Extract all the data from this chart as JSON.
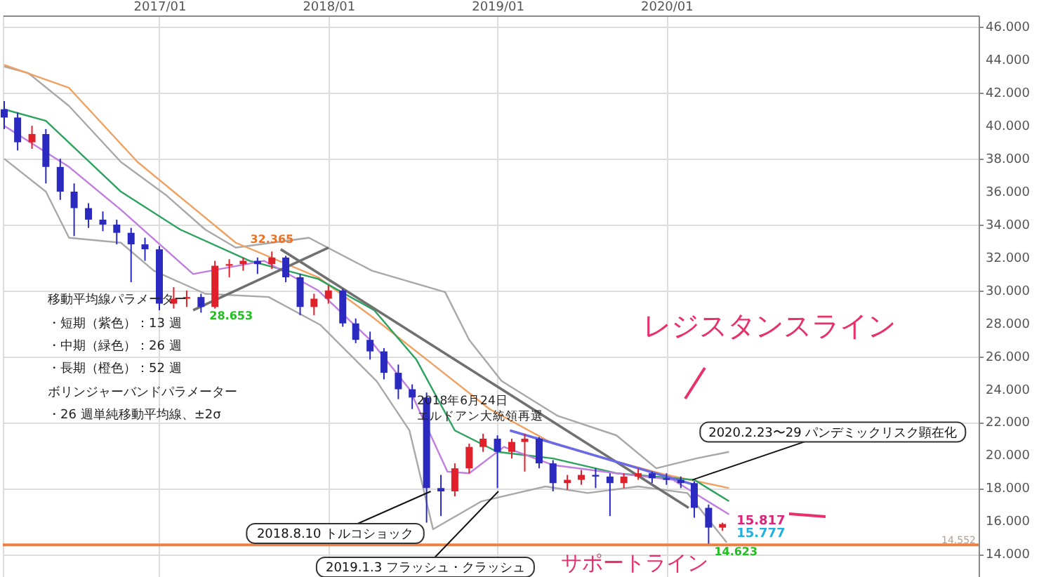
{
  "chart_data": {
    "type": "candlestick",
    "x": [
      "2016-02-01",
      "2016-03-01",
      "2016-04-01",
      "2016-05-01",
      "2016-06-01",
      "2016-07-01",
      "2016-08-01",
      "2016-09-01",
      "2016-10-01",
      "2016-11-01",
      "2016-12-01",
      "2017-01-01",
      "2017-02-01",
      "2017-03-01",
      "2017-04-01",
      "2017-05-01",
      "2017-06-01",
      "2017-07-01",
      "2017-08-01",
      "2017-09-01",
      "2017-10-01",
      "2017-11-01",
      "2017-12-01",
      "2018-01-01",
      "2018-02-01",
      "2018-03-01",
      "2018-04-01",
      "2018-05-01",
      "2018-06-01",
      "2018-07-01",
      "2018-08-01",
      "2018-09-01",
      "2018-10-01",
      "2018-11-01",
      "2018-12-01",
      "2019-01-01",
      "2019-02-01",
      "2019-03-01",
      "2019-04-01",
      "2019-05-01",
      "2019-06-01",
      "2019-07-01",
      "2019-08-01",
      "2019-09-01",
      "2019-10-01",
      "2019-11-01",
      "2019-12-01",
      "2020-01-01",
      "2020-02-01",
      "2020-03-01",
      "2020-04-01",
      "2020-05-01"
    ],
    "ohlc": [
      [
        41.0,
        41.5,
        39.8,
        40.5
      ],
      [
        40.5,
        40.8,
        38.5,
        39.0
      ],
      [
        39.0,
        40.0,
        38.6,
        39.5
      ],
      [
        39.5,
        39.8,
        36.5,
        37.5
      ],
      [
        37.5,
        38.0,
        35.5,
        36.0
      ],
      [
        36.0,
        36.5,
        33.3,
        35.0
      ],
      [
        35.0,
        35.3,
        33.8,
        34.3
      ],
      [
        34.3,
        34.8,
        33.6,
        34.0
      ],
      [
        34.0,
        34.3,
        32.8,
        33.5
      ],
      [
        33.5,
        33.8,
        30.5,
        32.8
      ],
      [
        32.8,
        33.2,
        31.8,
        32.5
      ],
      [
        32.5,
        32.7,
        28.8,
        29.2
      ],
      [
        29.2,
        30.2,
        28.9,
        29.5
      ],
      [
        29.5,
        30.0,
        29.0,
        29.6
      ],
      [
        29.6,
        29.8,
        28.653,
        29.0
      ],
      [
        29.0,
        31.8,
        28.9,
        31.5
      ],
      [
        31.5,
        31.9,
        30.8,
        31.6
      ],
      [
        31.6,
        32.0,
        31.2,
        31.8
      ],
      [
        31.8,
        32.0,
        31.0,
        31.6
      ],
      [
        31.6,
        32.365,
        31.3,
        32.0
      ],
      [
        32.0,
        32.1,
        30.5,
        30.8
      ],
      [
        30.8,
        31.0,
        28.5,
        29.0
      ],
      [
        29.0,
        29.8,
        28.5,
        29.5
      ],
      [
        29.5,
        30.3,
        29.2,
        30.0
      ],
      [
        30.0,
        30.1,
        27.8,
        28.0
      ],
      [
        28.0,
        28.3,
        26.8,
        27.0
      ],
      [
        27.0,
        27.5,
        25.8,
        26.3
      ],
      [
        26.3,
        26.5,
        24.6,
        25.0
      ],
      [
        25.0,
        25.5,
        23.4,
        24.0
      ],
      [
        24.0,
        24.3,
        22.8,
        23.5
      ],
      [
        23.5,
        23.8,
        15.9,
        18.0
      ],
      [
        18.0,
        18.8,
        16.3,
        17.8
      ],
      [
        17.8,
        19.5,
        17.5,
        19.2
      ],
      [
        19.2,
        20.7,
        18.9,
        20.5
      ],
      [
        20.5,
        21.3,
        20.2,
        21.0
      ],
      [
        21.0,
        21.2,
        18.0,
        20.2
      ],
      [
        20.2,
        21.0,
        19.8,
        20.8
      ],
      [
        20.8,
        21.3,
        19.0,
        21.0
      ],
      [
        21.0,
        21.1,
        19.2,
        19.5
      ],
      [
        19.5,
        19.7,
        17.8,
        18.3
      ],
      [
        18.3,
        18.8,
        17.9,
        18.5
      ],
      [
        18.5,
        19.1,
        18.2,
        18.8
      ],
      [
        18.8,
        19.2,
        18.0,
        18.7
      ],
      [
        18.7,
        18.9,
        16.3,
        18.3
      ],
      [
        18.3,
        18.9,
        18.0,
        18.7
      ],
      [
        18.7,
        19.2,
        18.5,
        18.9
      ],
      [
        18.9,
        19.0,
        18.3,
        18.6
      ],
      [
        18.6,
        18.9,
        18.2,
        18.5
      ],
      [
        18.5,
        18.7,
        18.0,
        18.3
      ],
      [
        18.3,
        18.4,
        16.2,
        16.8
      ],
      [
        16.8,
        17.0,
        14.623,
        15.6
      ],
      [
        15.6,
        15.9,
        15.4,
        15.817
      ]
    ],
    "colors": [
      "#2a2ac0",
      "#2a2ac0",
      "#e0202a",
      "#2a2ac0",
      "#2a2ac0",
      "#2a2ac0",
      "#2a2ac0",
      "#2a2ac0",
      "#2a2ac0",
      "#2a2ac0",
      "#2a2ac0",
      "#2a2ac0",
      "#e0202a",
      "#e0202a",
      "#2a2ac0",
      "#e0202a",
      "#e0202a",
      "#e0202a",
      "#2a2ac0",
      "#e0202a",
      "#2a2ac0",
      "#2a2ac0",
      "#e0202a",
      "#e0202a",
      "#2a2ac0",
      "#2a2ac0",
      "#2a2ac0",
      "#2a2ac0",
      "#2a2ac0",
      "#2a2ac0",
      "#2a2ac0",
      "#2a2ac0",
      "#e0202a",
      "#e0202a",
      "#e0202a",
      "#2a2ac0",
      "#e0202a",
      "#e0202a",
      "#2a2ac0",
      "#2a2ac0",
      "#e0202a",
      "#e0202a",
      "#2a2ac0",
      "#2a2ac0",
      "#e0202a",
      "#e0202a",
      "#2a2ac0",
      "#2a2ac0",
      "#2a2ac0",
      "#2a2ac0",
      "#2a2ac0",
      "#e0202a"
    ],
    "series": [
      {
        "type": "line",
        "color": "#a8a8a8",
        "x": [
          "2016-02-01",
          "2016-03-24",
          "2016-06-20",
          "2016-10-10",
          "2017-01-15",
          "2017-04-10",
          "2017-06-15",
          "2017-11-20",
          "2018-04-05",
          "2018-09-10",
          "2018-11-01",
          "2019-01-10",
          "2019-05-10",
          "2019-09-15",
          "2019-12-10",
          "2020-03-05",
          "2020-05-15"
        ],
        "values": [
          43.6,
          43.2,
          41.2,
          37.8,
          35.8,
          33.7,
          32.6,
          33.2,
          31.2,
          29.9,
          27.0,
          24.5,
          22.4,
          21.2,
          19.2,
          19.8,
          20.2
        ]
      },
      {
        "type": "line",
        "color": "#a8a8a8",
        "x": [
          "2016-02-01",
          "2016-05-01",
          "2016-06-20",
          "2016-10-10",
          "2016-12-20",
          "2017-04-10",
          "2017-08-25",
          "2017-12-15",
          "2018-04-15",
          "2018-06-25",
          "2018-08-15",
          "2018-11-28",
          "2019-04-15",
          "2019-07-15",
          "2019-11-01",
          "2020-02-15",
          "2020-05-10"
        ],
        "values": [
          38.0,
          36.0,
          33.2,
          32.9,
          31.2,
          29.8,
          29.6,
          27.9,
          24.5,
          21.5,
          15.5,
          17.2,
          18.1,
          17.7,
          18.1,
          17.7,
          14.7
        ]
      },
      {
        "type": "line",
        "color": "#f0a060",
        "x": [
          "2016-02-01",
          "2016-06-20",
          "2016-11-15",
          "2017-06-15",
          "2017-12-10",
          "2018-04-01",
          "2018-08-15",
          "2018-12-15",
          "2019-05-01",
          "2019-09-15",
          "2020-01-01",
          "2020-05-15"
        ],
        "values": [
          43.7,
          42.3,
          37.8,
          32.9,
          30.8,
          28.5,
          25.5,
          22.8,
          20.7,
          19.6,
          18.8,
          18.0
        ]
      },
      {
        "type": "line",
        "color": "#2ca25f",
        "x": [
          "2016-02-01",
          "2016-05-01",
          "2016-10-10",
          "2017-02-15",
          "2017-07-15",
          "2017-12-10",
          "2018-04-10",
          "2018-07-10",
          "2018-10-01",
          "2019-01-01",
          "2019-05-01",
          "2019-09-15",
          "2020-03-01",
          "2020-05-15"
        ],
        "values": [
          41.0,
          40.3,
          36.0,
          33.7,
          31.8,
          30.7,
          28.8,
          25.8,
          21.5,
          20.2,
          19.8,
          18.9,
          18.5,
          17.2
        ]
      },
      {
        "type": "line",
        "color": "#c07ee0",
        "x": [
          "2016-02-01",
          "2016-06-20",
          "2016-10-10",
          "2017-03-15",
          "2017-08-15",
          "2017-12-10",
          "2018-04-01",
          "2018-06-25",
          "2018-09-15",
          "2018-11-01",
          "2019-01-15",
          "2019-05-01",
          "2019-09-15",
          "2020-01-15",
          "2020-03-01",
          "2020-05-15"
        ],
        "values": [
          40.0,
          37.5,
          34.9,
          31.0,
          31.8,
          30.0,
          27.0,
          24.0,
          19.0,
          18.9,
          20.5,
          19.4,
          18.9,
          18.5,
          17.7,
          16.4
        ]
      },
      {
        "type": "line",
        "color": "#707070",
        "x": [
          "2017-09-20",
          "2020-02-18"
        ],
        "values": [
          32.5,
          16.8
        ]
      },
      {
        "type": "line",
        "color": "#707070",
        "x": [
          "2017-03-15",
          "2018-01-01"
        ],
        "values": [
          28.8,
          32.6
        ]
      },
      {
        "type": "line",
        "color": "#6a6ae6",
        "x": [
          "2019-01-28",
          "2020-03-01"
        ],
        "values": [
          21.5,
          18.2
        ]
      }
    ],
    "xlim": [
      "2016-01-29",
      "2021-11-05"
    ],
    "xticks": [
      {
        "value": "2017-01-01",
        "label": "2017/01"
      },
      {
        "value": "2018-01-01",
        "label": "2018/01"
      },
      {
        "value": "2019-01-01",
        "label": "2019/01"
      },
      {
        "value": "2020-01-01",
        "label": "2020/01"
      }
    ],
    "ylim": [
      12.6,
      46.7
    ],
    "yticks": [
      {
        "value": 14,
        "label": "14.000"
      },
      {
        "value": 16,
        "label": "16.000"
      },
      {
        "value": 18,
        "label": "18.000"
      },
      {
        "value": 20,
        "label": "20.000"
      },
      {
        "value": 22,
        "label": "22.000"
      },
      {
        "value": 24,
        "label": "24.000"
      },
      {
        "value": 26,
        "label": "26.000"
      },
      {
        "value": 28,
        "label": "28.000"
      },
      {
        "value": 30,
        "label": "30.000"
      },
      {
        "value": 32,
        "label": "32.000"
      },
      {
        "value": 34,
        "label": "34.000"
      },
      {
        "value": 36,
        "label": "36.000"
      },
      {
        "value": 38,
        "label": "38.000"
      },
      {
        "value": 40,
        "label": "40.000"
      },
      {
        "value": 42,
        "label": "42.000"
      },
      {
        "value": 44,
        "label": "44.000"
      },
      {
        "value": 46,
        "label": "46.000"
      }
    ],
    "grid": true,
    "ref_lines": [
      {
        "axis": "y",
        "value": 14.552,
        "label": "14.552",
        "color": "#f08040"
      }
    ],
    "annotations": [
      "移動平均線パラメーター",
      "・短期（紫色）：13 週",
      "・中期（緑色）：26 週",
      "・長期（橙色）：52 週",
      "ボリンジャーバンドパラメーター",
      "・26 週単純移動平均線、±2σ",
      "2018年6月24日",
      "エルドアン大統領再選",
      "レジスタンスライン",
      "サポートライン",
      {
        "text": "32.365",
        "x": "2017-09-01",
        "y": 32.365
      },
      {
        "text": "28.653",
        "x": "2017-04-01",
        "y": 28.653
      },
      {
        "text": "14.623",
        "x": "2020-04-01",
        "y": 14.623
      },
      {
        "text": "15.817",
        "x": "2020-05-01",
        "y": 15.817
      },
      {
        "text": "15.777",
        "x": "2020-05-01",
        "y": 15.777
      },
      {
        "text": "2018.8.10 トルコショック",
        "x": "2018-08-10",
        "y": 17.8
      },
      {
        "text": "2019.1.3 フラッシュ・クラッシュ",
        "x": "2019-01-03",
        "y": 17.8
      },
      {
        "text": "2020.2.23〜29 パンデミックリスク顕在化",
        "x": "2020-02-26",
        "y": 18.5
      }
    ]
  }
}
